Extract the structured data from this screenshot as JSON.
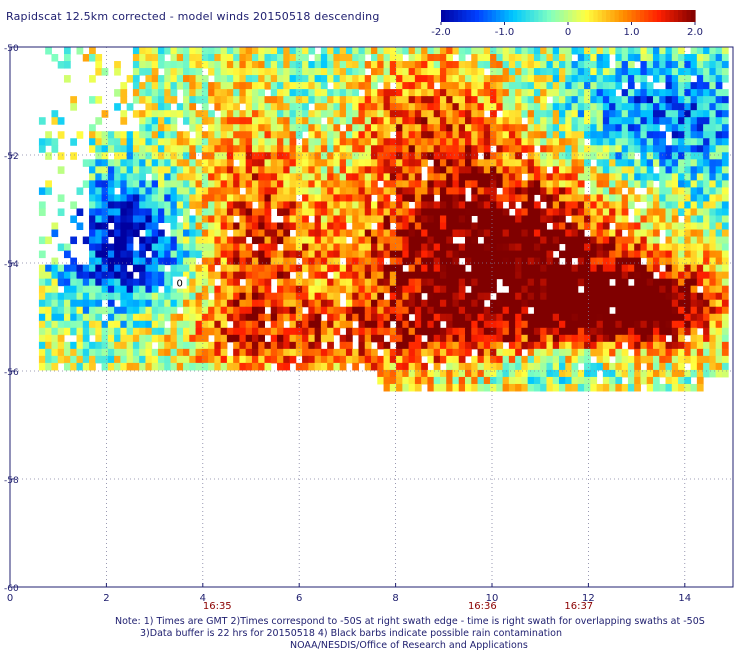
{
  "title": "Rapidscat 12.5km corrected - model winds 20150518 descending",
  "notes": [
    "Note: 1) Times are GMT 2)Times correspond to -50S at right swath edge - time is right swath for overlapping swaths at -50S",
    "3)Data buffer is 22 hrs for 20150518 4) Black barbs indicate possible rain contamination",
    "NOAA/NESDIS/Office of Research and Applications"
  ],
  "chart_data": {
    "type": "heatmap",
    "title": "Rapidscat 12.5km corrected - model winds 20150518 descending",
    "colorbar": {
      "range": [
        -2.0,
        2.0
      ],
      "tick_labels": [
        "-2.0",
        "-1.0",
        "0",
        "1.0",
        "2.0"
      ],
      "tick_values": [
        -2.0,
        -1.0,
        0,
        1.0,
        2.0
      ],
      "colors": [
        "#0000a0",
        "#0040ff",
        "#00c8ff",
        "#80ffc0",
        "#ffff40",
        "#ff9000",
        "#ff2000",
        "#800000"
      ]
    },
    "x_axis": {
      "range": [
        0,
        15
      ],
      "ticks": [
        0,
        2,
        4,
        6,
        8,
        10,
        12,
        14
      ],
      "tick_labels": [
        "0",
        "2",
        "4",
        "6",
        "8",
        "10",
        "12",
        "14"
      ]
    },
    "y_axis": {
      "range": [
        -60,
        -50
      ],
      "ticks": [
        -50,
        -52,
        -54,
        -56,
        -58,
        -60
      ],
      "tick_labels": [
        "-50",
        "-52",
        "-54",
        "-56",
        "-58",
        "-60"
      ]
    },
    "time_labels": [
      {
        "x": 4.3,
        "label": "16:35"
      },
      {
        "x": 9.8,
        "label": "16:36"
      },
      {
        "x": 11.8,
        "label": "16:37"
      }
    ],
    "grid": true,
    "contour_label": {
      "x": 3.5,
      "y": -54.4,
      "text": "0"
    },
    "field_regions": [
      {
        "name": "core maximum",
        "x_range": [
          7.6,
          12.4
        ],
        "y_range": [
          -55.2,
          -52.2
        ],
        "value": 2.0
      },
      {
        "name": "tail maximum",
        "x_range": [
          12.0,
          14.2
        ],
        "y_range": [
          -55.6,
          -54.1
        ],
        "value": 2.0
      },
      {
        "name": "left positive band",
        "x_range": [
          4.0,
          6.0
        ],
        "y_range": [
          -55.5,
          -51.5
        ],
        "value": 1.2
      },
      {
        "name": "left negative band",
        "x_range": [
          1.6,
          3.6
        ],
        "y_range": [
          -54.9,
          -52.5
        ],
        "value": -1.6
      },
      {
        "name": "upper right negative",
        "x_range": [
          12.0,
          14.8
        ],
        "y_range": [
          -52.6,
          -50.0
        ],
        "value": -1.2
      }
    ]
  }
}
